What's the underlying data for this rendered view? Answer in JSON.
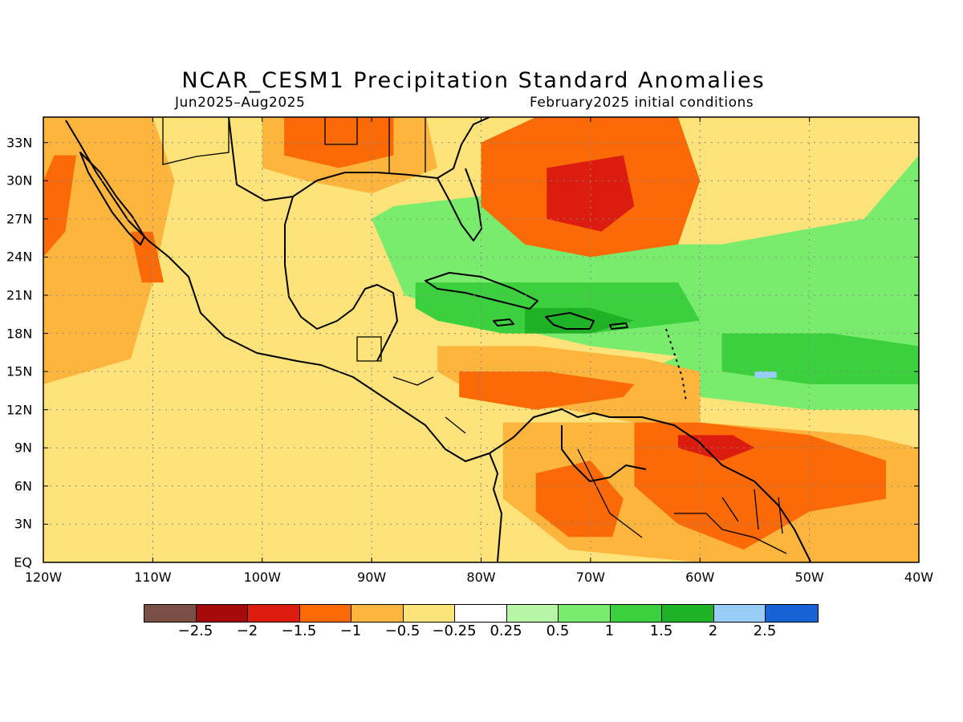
{
  "title": "NCAR_CESM1 Precipitation Standard Anomalies",
  "subtitle_left": "Jun2025–Aug2025",
  "subtitle_right": "February2025 initial conditions",
  "lon_labels": [
    "120W",
    "110W",
    "100W",
    "90W",
    "80W",
    "70W",
    "60W",
    "50W",
    "40W"
  ],
  "lat_labels": [
    "EQ",
    "3N",
    "6N",
    "9N",
    "12N",
    "15N",
    "18N",
    "21N",
    "24N",
    "27N",
    "30N",
    "33N"
  ],
  "colorbar": {
    "colors": [
      "#7a5046",
      "#a50a0a",
      "#dd1c10",
      "#fb6a06",
      "#fdb53d",
      "#fee27a",
      "#ffffff",
      "#b6f6a6",
      "#79ec6e",
      "#3ccf3e",
      "#20b226",
      "#97cdf6",
      "#1763d6"
    ],
    "labels": [
      "−2.5",
      "−2",
      "−1.5",
      "−1",
      "−0.5",
      "−0.25",
      "0.25",
      "0.5",
      "1",
      "1.5",
      "2",
      "2.5"
    ]
  },
  "map": {
    "lon_range": [
      -120,
      -40
    ],
    "lat_range": [
      0,
      35
    ],
    "background_color": "#fee27a",
    "anomaly_fields": [
      {
        "level": "-1",
        "color": "#fdb53d",
        "polygon": [
          [
            -120,
            35
          ],
          [
            -110,
            35
          ],
          [
            -108,
            30
          ],
          [
            -110,
            22
          ],
          [
            -112,
            16
          ],
          [
            -120,
            14
          ]
        ]
      },
      {
        "level": "-1.5",
        "color": "#fb6a06",
        "polygon": [
          [
            -119,
            32
          ],
          [
            -117,
            32
          ],
          [
            -118,
            26
          ],
          [
            -120,
            24
          ],
          [
            -120,
            30
          ]
        ]
      },
      {
        "level": "-1.5",
        "color": "#fb6a06",
        "polygon": [
          [
            -112,
            26
          ],
          [
            -110,
            26
          ],
          [
            -109,
            22
          ],
          [
            -111,
            22
          ]
        ]
      },
      {
        "level": "-1",
        "color": "#fdb53d",
        "polygon": [
          [
            -100,
            35
          ],
          [
            -85,
            35
          ],
          [
            -84,
            31
          ],
          [
            -90,
            29
          ],
          [
            -96,
            30
          ],
          [
            -100,
            31
          ]
        ]
      },
      {
        "level": "-1.5",
        "color": "#fb6a06",
        "polygon": [
          [
            -98,
            35
          ],
          [
            -88,
            35
          ],
          [
            -88,
            32
          ],
          [
            -93,
            31
          ],
          [
            -98,
            32
          ]
        ]
      },
      {
        "level": "0.5",
        "color": "#79ec6e",
        "polygon": [
          [
            -88,
            28
          ],
          [
            -78,
            29
          ],
          [
            -75,
            26
          ],
          [
            -70,
            25
          ],
          [
            -58,
            25
          ],
          [
            -45,
            27
          ],
          [
            -40,
            32
          ],
          [
            -40,
            20
          ],
          [
            -50,
            18
          ],
          [
            -60,
            16
          ],
          [
            -70,
            17
          ],
          [
            -80,
            19
          ],
          [
            -87,
            21
          ],
          [
            -90,
            27
          ]
        ]
      },
      {
        "level": "0.5",
        "color": "#79ec6e",
        "polygon": [
          [
            -60,
            20
          ],
          [
            -45,
            21
          ],
          [
            -40,
            20
          ],
          [
            -40,
            12
          ],
          [
            -50,
            12
          ],
          [
            -60,
            13
          ],
          [
            -65,
            15
          ],
          [
            -60,
            17
          ]
        ]
      },
      {
        "level": "1.5",
        "color": "#3ccf3e",
        "polygon": [
          [
            -86,
            22
          ],
          [
            -78,
            22
          ],
          [
            -70,
            22
          ],
          [
            -62,
            22
          ],
          [
            -60,
            19
          ],
          [
            -70,
            18
          ],
          [
            -78,
            18
          ],
          [
            -84,
            19
          ],
          [
            -86,
            20
          ]
        ]
      },
      {
        "level": "1.5",
        "color": "#3ccf3e",
        "polygon": [
          [
            -58,
            18
          ],
          [
            -48,
            18
          ],
          [
            -40,
            17
          ],
          [
            -40,
            14
          ],
          [
            -50,
            14
          ],
          [
            -58,
            15
          ]
        ]
      },
      {
        "level": "2",
        "color": "#20b226",
        "polygon": [
          [
            -76,
            20
          ],
          [
            -70,
            20
          ],
          [
            -66,
            19
          ],
          [
            -70,
            18
          ],
          [
            -76,
            18
          ]
        ]
      },
      {
        "level": "2.5",
        "color": "#97cdf6",
        "polygon": [
          [
            -55,
            15
          ],
          [
            -53,
            15
          ],
          [
            -53,
            14.5
          ],
          [
            -55,
            14.5
          ]
        ]
      },
      {
        "level": "-1.5",
        "color": "#fb6a06",
        "polygon": [
          [
            -80,
            33
          ],
          [
            -75,
            35
          ],
          [
            -62,
            35
          ],
          [
            -60,
            30
          ],
          [
            -62,
            25
          ],
          [
            -70,
            24
          ],
          [
            -76,
            25
          ],
          [
            -80,
            28
          ]
        ]
      },
      {
        "level": "-2",
        "color": "#dd1c10",
        "polygon": [
          [
            -74,
            31
          ],
          [
            -67,
            32
          ],
          [
            -66,
            28
          ],
          [
            -69,
            26
          ],
          [
            -74,
            27
          ]
        ]
      },
      {
        "level": "-1",
        "color": "#fdb53d",
        "polygon": [
          [
            -84,
            17
          ],
          [
            -75,
            17
          ],
          [
            -65,
            16
          ],
          [
            -60,
            15
          ],
          [
            -60,
            11
          ],
          [
            -66,
            11
          ],
          [
            -72,
            12
          ],
          [
            -80,
            13
          ],
          [
            -84,
            15
          ]
        ]
      },
      {
        "level": "-1.5",
        "color": "#fb6a06",
        "polygon": [
          [
            -82,
            15
          ],
          [
            -74,
            15
          ],
          [
            -66,
            14
          ],
          [
            -67,
            13
          ],
          [
            -75,
            12
          ],
          [
            -82,
            13
          ]
        ]
      },
      {
        "level": "-1",
        "color": "#fdb53d",
        "polygon": [
          [
            -78,
            11
          ],
          [
            -70,
            11
          ],
          [
            -60,
            11
          ],
          [
            -45,
            10
          ],
          [
            -40,
            9
          ],
          [
            -40,
            0
          ],
          [
            -60,
            0
          ],
          [
            -72,
            1
          ],
          [
            -78,
            5
          ]
        ]
      },
      {
        "level": "-1.5",
        "color": "#fb6a06",
        "polygon": [
          [
            -66,
            11
          ],
          [
            -60,
            11
          ],
          [
            -50,
            10
          ],
          [
            -43,
            8
          ],
          [
            -43,
            5
          ],
          [
            -50,
            4
          ],
          [
            -56,
            1
          ],
          [
            -62,
            3
          ],
          [
            -66,
            6
          ]
        ]
      },
      {
        "level": "-1.5",
        "color": "#fb6a06",
        "polygon": [
          [
            -75,
            7
          ],
          [
            -70,
            8
          ],
          [
            -67,
            5
          ],
          [
            -68,
            2
          ],
          [
            -72,
            2
          ],
          [
            -75,
            4
          ]
        ]
      },
      {
        "level": "-2",
        "color": "#dd1c10",
        "polygon": [
          [
            -62,
            10
          ],
          [
            -57,
            10
          ],
          [
            -55,
            9
          ],
          [
            -58,
            8
          ],
          [
            -62,
            9
          ]
        ]
      }
    ]
  }
}
